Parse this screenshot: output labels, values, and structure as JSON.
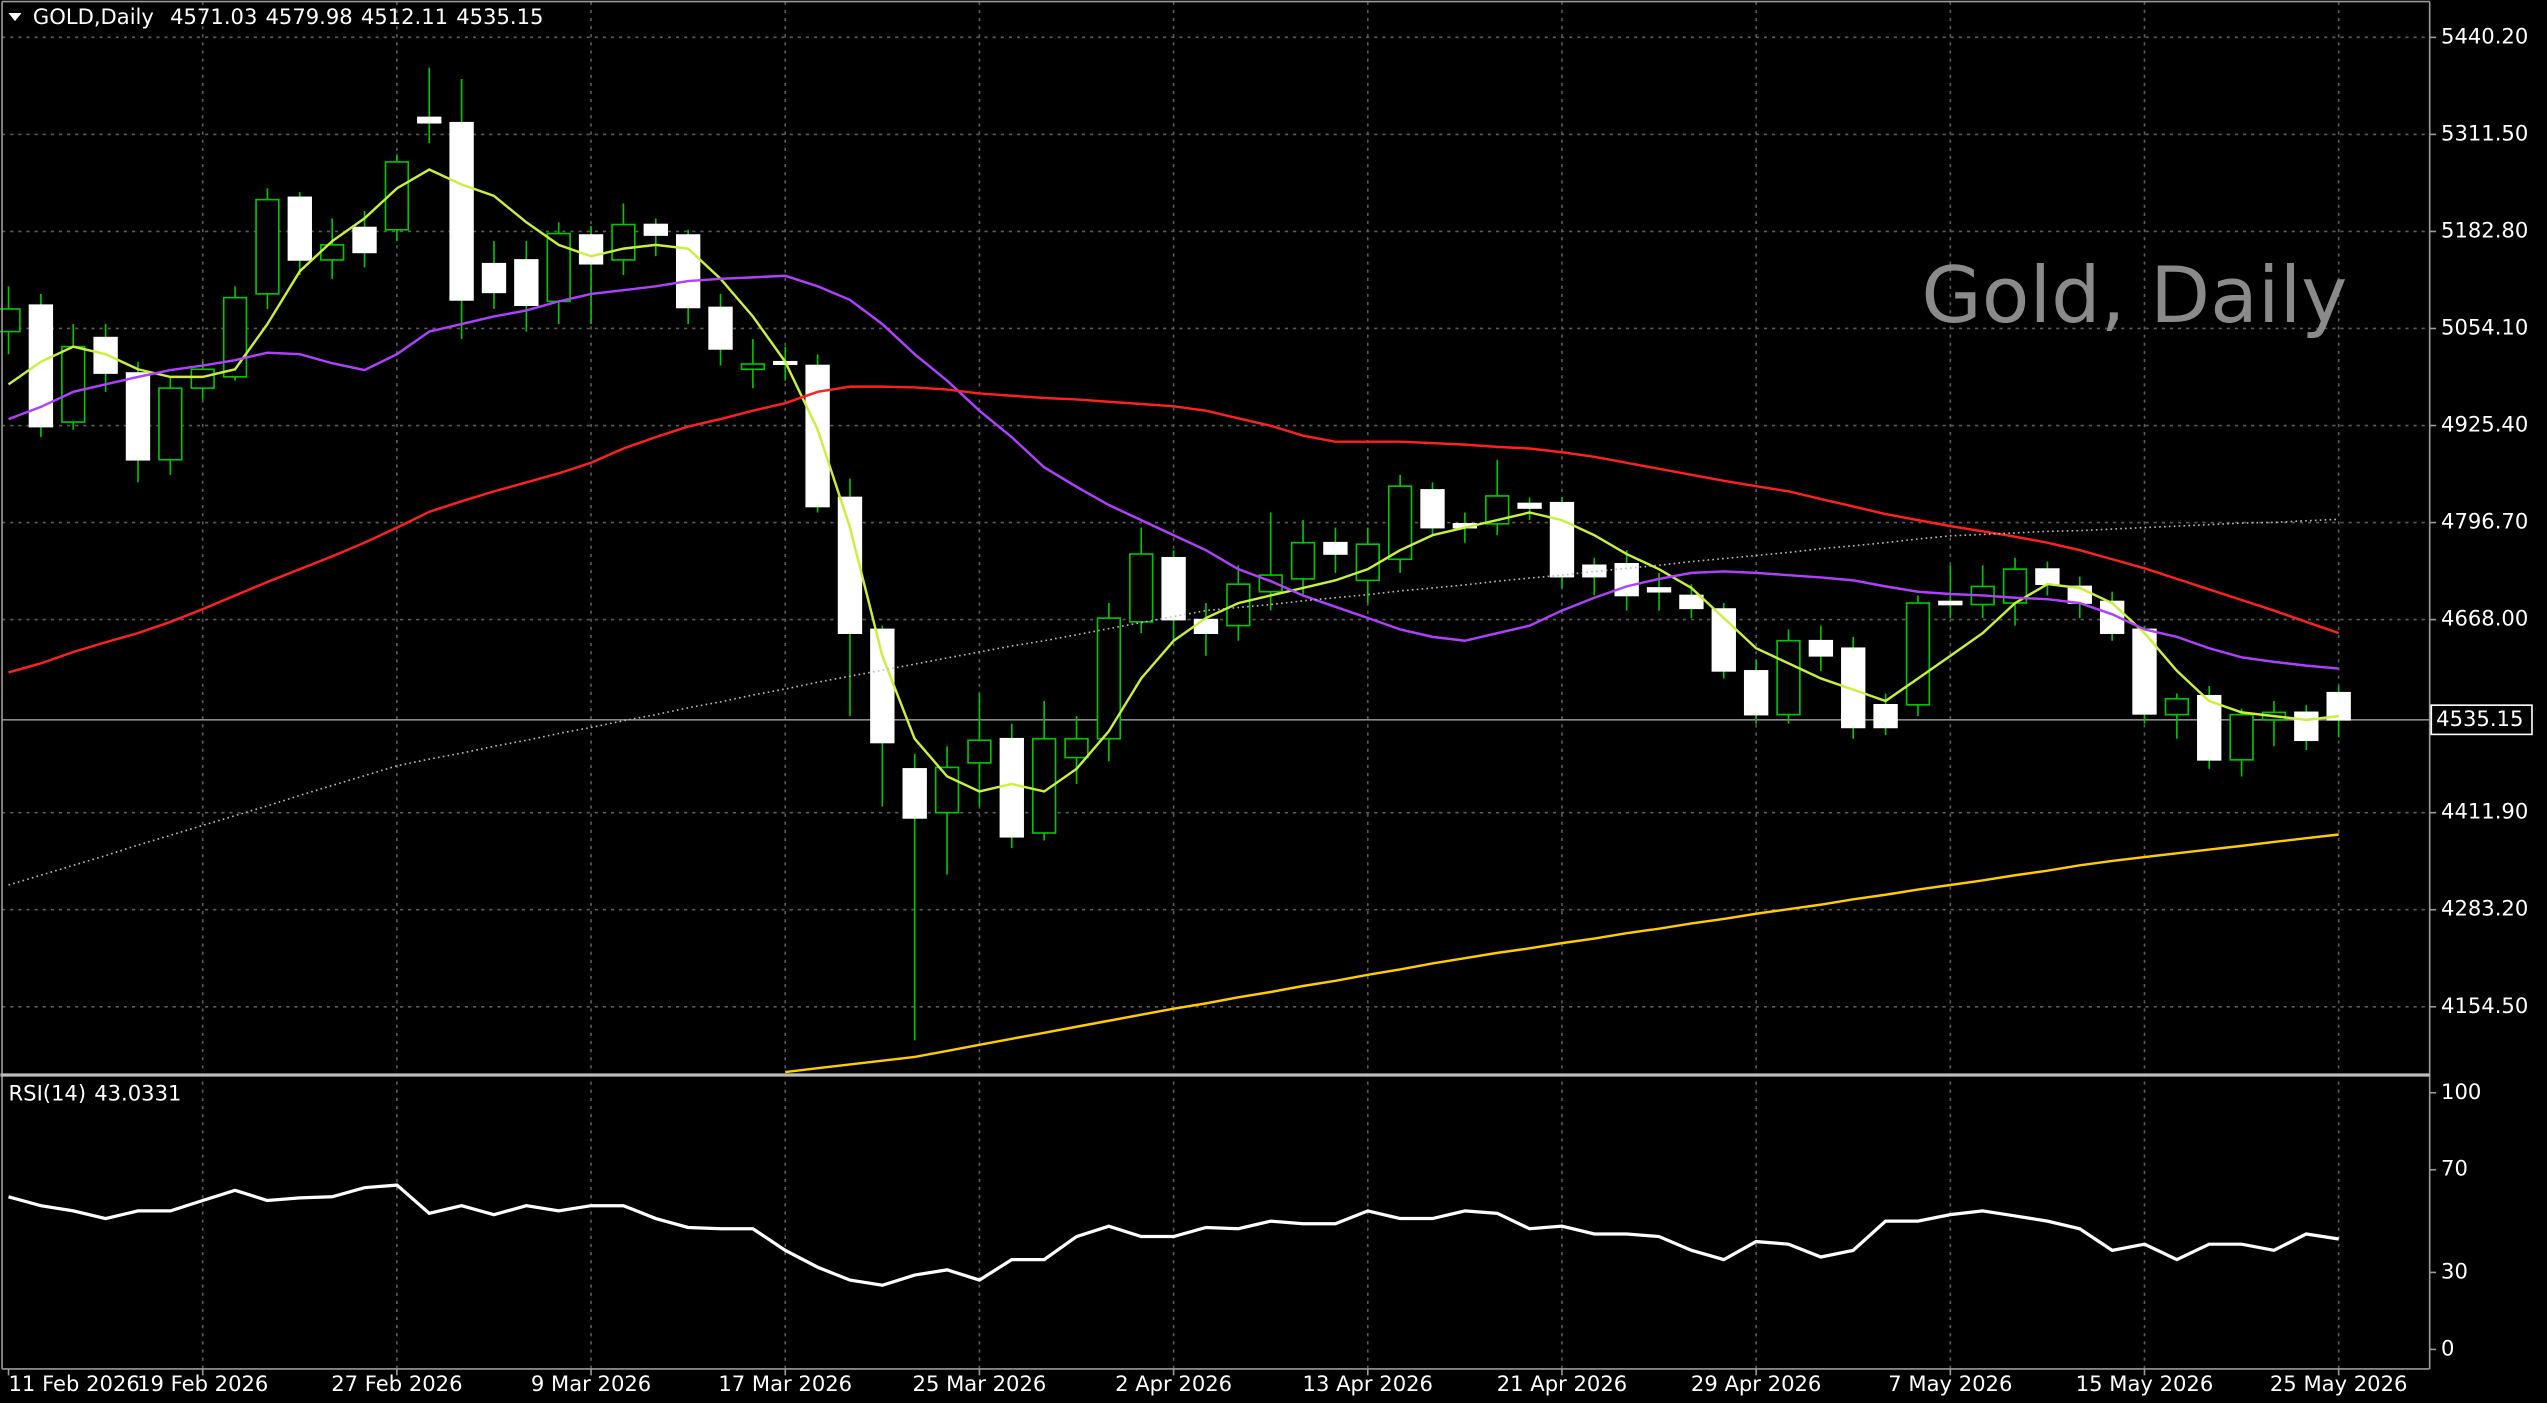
{
  "chart_data": [
    {
      "type": "candlestick",
      "symbol": "GOLD,Daily",
      "watermark": "Gold, Daily",
      "categories": [
        "11 Feb 2026",
        null,
        null,
        null,
        null,
        null,
        "19 Feb 2026",
        null,
        null,
        null,
        null,
        null,
        "27 Feb 2026",
        null,
        null,
        null,
        null,
        null,
        "9 Mar 2026",
        null,
        null,
        null,
        null,
        null,
        "17 Mar 2026",
        null,
        null,
        null,
        null,
        null,
        "25 Mar 2026",
        null,
        null,
        null,
        null,
        null,
        "2 Apr 2026",
        null,
        null,
        null,
        null,
        null,
        "13 Apr 2026",
        null,
        null,
        null,
        null,
        null,
        "21 Apr 2026",
        null,
        null,
        null,
        null,
        null,
        "29 Apr 2026",
        null,
        null,
        null,
        null,
        null,
        "7 May 2026",
        null,
        null,
        null,
        null,
        null,
        "15 May 2026",
        null,
        null,
        null,
        null,
        null,
        "25 May 2026"
      ],
      "open": [
        5050,
        5085,
        4930,
        5042,
        4995,
        4880,
        4975,
        4990,
        5100,
        5228,
        5145,
        5188,
        5185,
        5334,
        5327,
        5140,
        5145,
        5090,
        5178,
        5145,
        5192,
        5178,
        5082,
        5000,
        5010,
        5005,
        4830,
        4655,
        4470,
        4412,
        4478,
        4510,
        4385,
        4485,
        4510,
        4665,
        4750,
        4668,
        4660,
        4705,
        4722,
        4770,
        4720,
        4748,
        4840,
        4795,
        4795,
        4822,
        4823,
        4740,
        4742,
        4710,
        4700,
        4682,
        4600,
        4542,
        4640,
        4630,
        4555,
        4555,
        4692,
        4688,
        4690,
        4735,
        4712,
        4692,
        4655,
        4542,
        4567,
        4482,
        4535,
        4545,
        4571.03
      ],
      "high": [
        5110,
        5100,
        5060,
        5060,
        5010,
        4990,
        5010,
        5110,
        5240,
        5235,
        5200,
        5210,
        5285,
        5400,
        5385,
        5170,
        5170,
        5195,
        5190,
        5220,
        5200,
        5185,
        5100,
        5040,
        5030,
        5020,
        4855,
        4660,
        4490,
        4500,
        4570,
        4530,
        4560,
        4540,
        4690,
        4790,
        4760,
        4690,
        4740,
        4810,
        4800,
        4790,
        4790,
        4860,
        4850,
        4810,
        4880,
        4830,
        4830,
        4750,
        4760,
        4730,
        4715,
        4690,
        4615,
        4655,
        4660,
        4645,
        4570,
        4700,
        4740,
        4740,
        4750,
        4745,
        4725,
        4705,
        4660,
        4570,
        4580,
        4550,
        4560,
        4555,
        4579.98
      ],
      "low": [
        5020,
        4910,
        4920,
        4970,
        4850,
        4860,
        4960,
        4985,
        5080,
        5125,
        5120,
        5135,
        5170,
        5300,
        5040,
        5080,
        5050,
        5060,
        5060,
        5125,
        5150,
        5060,
        5005,
        4975,
        4985,
        4810,
        4540,
        4420,
        4110,
        4330,
        4420,
        4365,
        4375,
        4450,
        4480,
        4650,
        4640,
        4620,
        4640,
        4680,
        4700,
        4730,
        4690,
        4730,
        4780,
        4770,
        4780,
        4800,
        4710,
        4700,
        4680,
        4680,
        4670,
        4590,
        4530,
        4530,
        4600,
        4510,
        4515,
        4540,
        4670,
        4670,
        4660,
        4700,
        4670,
        4640,
        4530,
        4510,
        4470,
        4460,
        4500,
        4495,
        4512.11
      ],
      "close": [
        5080,
        4924,
        5030,
        4995,
        4880,
        4975,
        5000,
        5095,
        5225,
        5145,
        5165,
        5155,
        5275,
        5327,
        5092,
        5102,
        5085,
        5180,
        5140,
        5192,
        5178,
        5082,
        5027,
        5007,
        5008,
        4818,
        4650,
        4505,
        4405,
        4472,
        4508,
        4380,
        4510,
        4510,
        4670,
        4755,
        4668,
        4650,
        4715,
        4727,
        4770,
        4755,
        4768,
        4845,
        4790,
        4790,
        4832,
        4816,
        4725,
        4725,
        4700,
        4705,
        4683,
        4600,
        4542,
        4640,
        4620,
        4525,
        4525,
        4690,
        4688,
        4712,
        4735,
        4715,
        4690,
        4650,
        4543,
        4563,
        4482,
        4542,
        4545,
        4508,
        4535.15
      ],
      "bull_color": "#00c800",
      "bear_color": "#ffffff",
      "lines": [
        {
          "color": "#c8f03c",
          "values": [
            4980,
            5010,
            5030,
            5020,
            5000,
            4990,
            4990,
            5000,
            5060,
            5130,
            5170,
            5200,
            5240,
            5265,
            5245,
            5230,
            5195,
            5165,
            5150,
            5160,
            5165,
            5160,
            5120,
            5070,
            5010,
            4920,
            4790,
            4620,
            4510,
            4460,
            4440,
            4450,
            4440,
            4470,
            4520,
            4590,
            4640,
            4670,
            4690,
            4700,
            4710,
            4720,
            4735,
            4760,
            4780,
            4790,
            4800,
            4810,
            4800,
            4780,
            4755,
            4735,
            4710,
            4670,
            4630,
            4610,
            4590,
            4575,
            4560,
            4590,
            4620,
            4650,
            4690,
            4715,
            4710,
            4690,
            4650,
            4600,
            4560,
            4545,
            4540,
            4535,
            4540
          ]
        },
        {
          "color": "#b040ff",
          "values": [
            4934,
            4950,
            4970,
            4980,
            4990,
            4999,
            5005,
            5012,
            5022,
            5020,
            5008,
            4999,
            5020,
            5050,
            5060,
            5070,
            5078,
            5090,
            5100,
            5105,
            5110,
            5117,
            5120,
            5122,
            5124,
            5110,
            5092,
            5060,
            5020,
            4985,
            4945,
            4910,
            4870,
            4844,
            4820,
            4800,
            4780,
            4760,
            4735,
            4719,
            4700,
            4685,
            4670,
            4655,
            4645,
            4640,
            4650,
            4660,
            4680,
            4697,
            4712,
            4722,
            4730,
            4732,
            4730,
            4727,
            4724,
            4720,
            4712,
            4705,
            4702,
            4700,
            4697,
            4695,
            4690,
            4675,
            4655,
            4645,
            4630,
            4618,
            4612,
            4607,
            4603
          ]
        },
        {
          "color": "#ff2020",
          "values": [
            4598,
            4610,
            4625,
            4638,
            4650,
            4665,
            4682,
            4700,
            4718,
            4735,
            4752,
            4770,
            4790,
            4811,
            4825,
            4838,
            4850,
            4862,
            4876,
            4895,
            4910,
            4924,
            4934,
            4945,
            4955,
            4970,
            4977,
            4977,
            4976,
            4973,
            4968,
            4965,
            4962,
            4960,
            4957,
            4954,
            4951,
            4945,
            4935,
            4925,
            4912,
            4904,
            4904,
            4904,
            4902,
            4900,
            4897,
            4895,
            4890,
            4884,
            4876,
            4868,
            4860,
            4852,
            4845,
            4838,
            4828,
            4818,
            4808,
            4800,
            4792,
            4785,
            4778,
            4770,
            4760,
            4748,
            4736,
            4722,
            4708,
            4694,
            4680,
            4665,
            4650
          ]
        },
        {
          "color": "#bbbbbb",
          "style": "dotted",
          "values": [
            4316,
            4329,
            4342,
            4355,
            4369,
            4382,
            4395,
            4408,
            4421,
            4435,
            4448,
            4461,
            4474,
            4483,
            4491,
            4500,
            4508,
            4517,
            4525,
            4534,
            4542,
            4551,
            4559,
            4568,
            4576,
            4585,
            4593,
            4601,
            4609,
            4617,
            4625,
            4633,
            4640,
            4648,
            4656,
            4664,
            4672,
            4680,
            4684,
            4688,
            4693,
            4697,
            4701,
            4706,
            4710,
            4714,
            4719,
            4723,
            4727,
            4732,
            4736,
            4740,
            4745,
            4749,
            4753,
            4757,
            4762,
            4766,
            4770,
            4775,
            4779,
            4781,
            4783,
            4785,
            4786,
            4788,
            4790,
            4792,
            4794,
            4796,
            4797,
            4799,
            4801
          ]
        },
        {
          "color": "#ffcc00",
          "values": [
            null,
            null,
            null,
            null,
            null,
            null,
            null,
            null,
            null,
            null,
            null,
            null,
            null,
            null,
            null,
            null,
            null,
            null,
            null,
            null,
            null,
            null,
            null,
            null,
            4068,
            4073,
            4078,
            4083,
            4088,
            4096,
            4104,
            4112,
            4120,
            4128,
            4136,
            4144,
            4152,
            4159,
            4167,
            4174,
            4182,
            4189,
            4197,
            4204,
            4212,
            4219,
            4226,
            4232,
            4239,
            4245,
            4252,
            4258,
            4265,
            4271,
            4278,
            4284,
            4290,
            4297,
            4303,
            4310,
            4316,
            4322,
            4329,
            4335,
            4342,
            4348,
            4353,
            4358,
            4363,
            4368,
            4373,
            4378,
            4383
          ]
        }
      ],
      "ylim": [
        4066.2,
        5483.3
      ],
      "yticks": [
        {
          "value": 4154.5,
          "label": "4154.50"
        },
        {
          "value": 4283.2,
          "label": "4283.20"
        },
        {
          "value": 4411.9,
          "label": "4411.90"
        },
        {
          "value": 4668,
          "label": "4668.00"
        },
        {
          "value": 4796.7,
          "label": "4796.70"
        },
        {
          "value": 4925.4,
          "label": "4925.40"
        },
        {
          "value": 5054.1,
          "label": "5054.10"
        },
        {
          "value": 5182.8,
          "label": "5182.80"
        },
        {
          "value": 5311.5,
          "label": "5311.50"
        },
        {
          "value": 5440.2,
          "label": "5440.20"
        }
      ],
      "grid": true
    },
    {
      "type": "line",
      "title": "RSI(14)",
      "color": "#ffffff",
      "values": [
        59.5,
        56,
        54,
        51,
        54,
        54,
        58,
        62,
        58,
        59,
        59.5,
        63,
        64,
        53,
        56,
        52.5,
        56,
        54,
        56,
        56,
        51,
        47.5,
        47,
        47,
        38.6,
        32,
        27,
        25,
        29,
        31,
        27,
        35,
        35,
        44,
        48,
        44,
        44,
        47.5,
        47,
        50,
        49,
        49,
        54,
        51,
        51,
        54,
        53,
        47,
        48,
        45,
        45,
        44,
        38.6,
        35,
        42,
        41,
        36,
        38.6,
        50,
        50,
        52.5,
        54,
        52,
        50,
        47,
        38.6,
        41,
        35,
        41,
        41,
        38.6,
        45,
        43.0331
      ],
      "ylim": [
        -7.6,
        106.3
      ],
      "yticks": [
        0,
        30,
        70,
        100
      ]
    }
  ]
}
